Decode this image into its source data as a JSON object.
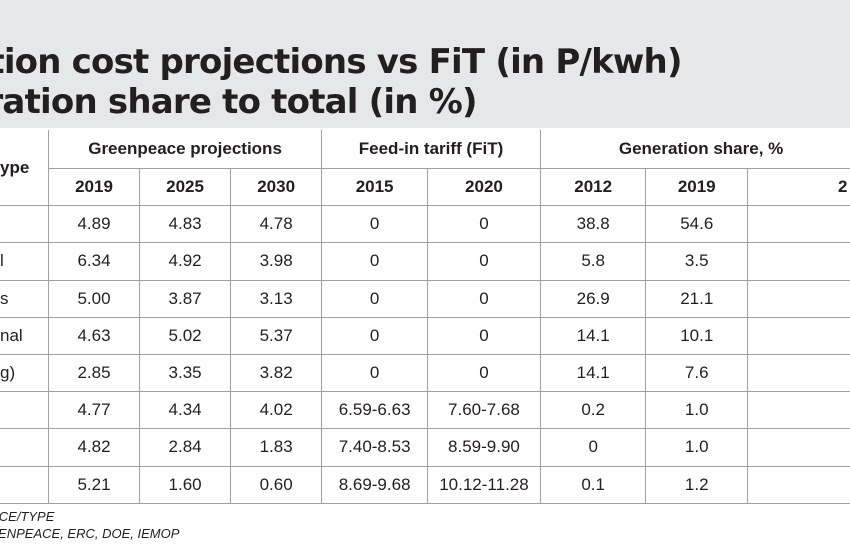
{
  "title": {
    "line1": "eration cost projections vs FiT (in P/kwh)",
    "line2": "generation share to total (in %)"
  },
  "header": {
    "type_label": "ype",
    "group_greenpeace": "Greenpeace projections",
    "group_fit": "Feed-in tariff (FiT)",
    "group_share": "Generation share, %",
    "years": [
      "2019",
      "2025",
      "2030",
      "2015",
      "2020",
      "2012",
      "2019",
      "2"
    ]
  },
  "rows": [
    {
      "label": "",
      "values": [
        "4.89",
        "4.83",
        "4.78",
        "0",
        "0",
        "38.8",
        "54.6"
      ]
    },
    {
      "label": "l",
      "values": [
        "6.34",
        "4.92",
        "3.98",
        "0",
        "0",
        "5.8",
        "3.5"
      ]
    },
    {
      "label": "s",
      "values": [
        "5.00",
        "3.87",
        "3.13",
        "0",
        "0",
        "26.9",
        "21.1"
      ]
    },
    {
      "label": "nal",
      "values": [
        "4.63",
        "5.02",
        "5.37",
        "0",
        "0",
        "14.1",
        "10.1"
      ]
    },
    {
      "label": "g)",
      "values": [
        "2.85",
        "3.35",
        "3.82",
        "0",
        "0",
        "14.1",
        "7.6"
      ]
    },
    {
      "label": "",
      "values": [
        "4.77",
        "4.34",
        "4.02",
        "6.59-6.63",
        "7.60-7.68",
        "0.2",
        "1.0"
      ]
    },
    {
      "label": "",
      "values": [
        "4.82",
        "2.84",
        "1.83",
        "7.40-8.53",
        "8.59-9.90",
        "0",
        "1.0"
      ]
    },
    {
      "label": "",
      "values": [
        "5.21",
        "1.60",
        "0.60",
        "8.69-9.68",
        "10.12-11.28",
        "0.1",
        "1.2"
      ]
    }
  ],
  "footer": {
    "line1": "URCE/TYPE",
    "line2": "REENPEACE, ERC, DOE, IEMOP"
  }
}
